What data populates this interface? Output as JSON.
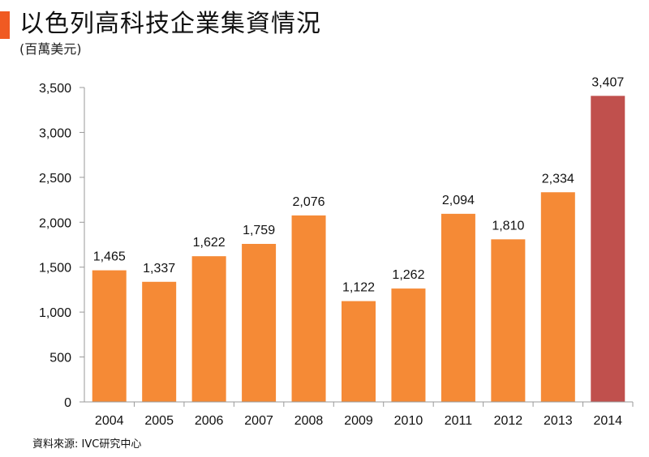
{
  "title": "以色列高科技企業集資情況",
  "subtitle": "(百萬美元)",
  "source": "資料來源: IVC研究中心",
  "colors": {
    "accent": "#f05a22",
    "bar": "#f58a36",
    "highlight": "#c0504d",
    "axis": "#999999"
  },
  "chart_data": {
    "type": "bar",
    "title": "以色列高科技企業集資情況",
    "subtitle": "(百萬美元)",
    "xlabel": "",
    "ylabel": "",
    "categories": [
      "2004",
      "2005",
      "2006",
      "2007",
      "2008",
      "2009",
      "2010",
      "2011",
      "2012",
      "2013",
      "2014"
    ],
    "values": [
      1465,
      1337,
      1622,
      1759,
      2076,
      1122,
      1262,
      2094,
      1810,
      2334,
      3407
    ],
    "value_labels": [
      "1,465",
      "1,337",
      "1,622",
      "1,759",
      "2,076",
      "1,122",
      "1,262",
      "2,094",
      "1,810",
      "2,334",
      "3,407"
    ],
    "highlight_index": 10,
    "ylim": [
      0,
      3500
    ],
    "yticks": [
      0,
      500,
      1000,
      1500,
      2000,
      2500,
      3000,
      3500
    ],
    "ytick_labels": [
      "0",
      "500",
      "1,000",
      "1,500",
      "2,000",
      "2,500",
      "3,000",
      "3,500"
    ],
    "grid": false,
    "legend": "none"
  }
}
